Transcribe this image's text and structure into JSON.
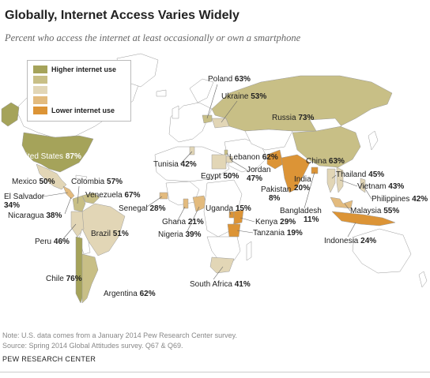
{
  "title": "Globally, Internet Access Varies Widely",
  "subtitle": "Percent who access the internet at least occasionally or own a smartphone",
  "colors": {
    "level1": "#a5a35a",
    "level2": "#c8bf86",
    "level3": "#e2d6b6",
    "level4": "#e3bb7e",
    "level5": "#dc9436",
    "land_no_data": "#ffffff",
    "border": "#999999"
  },
  "legend": {
    "higher": "Higher internet use",
    "lower": "Lower internet use"
  },
  "labels": {
    "poland": {
      "name": "Poland",
      "value": "63%"
    },
    "ukraine": {
      "name": "Ukraine",
      "value": "53%"
    },
    "russia": {
      "name": "Russia",
      "value": "73%"
    },
    "united_states": {
      "name": "United States",
      "value": "87%"
    },
    "mexico": {
      "name": "Mexico",
      "value": "50%"
    },
    "colombia": {
      "name": "Colombia",
      "value": "57%"
    },
    "el_salvador": {
      "name": "El Salvador",
      "value": "34%"
    },
    "venezuela": {
      "name": "Venezuela",
      "value": "67%"
    },
    "nicaragua": {
      "name": "Nicaragua",
      "value": "38%"
    },
    "brazil": {
      "name": "Brazil",
      "value": "51%"
    },
    "peru": {
      "name": "Peru",
      "value": "46%"
    },
    "chile": {
      "name": "Chile",
      "value": "76%"
    },
    "argentina": {
      "name": "Argentina",
      "value": "62%"
    },
    "tunisia": {
      "name": "Tunisia",
      "value": "42%"
    },
    "lebanon": {
      "name": "Lebanon",
      "value": "62%"
    },
    "egypt": {
      "name": "Egypt",
      "value": "50%"
    },
    "jordan": {
      "name": "Jordan",
      "value": "47%"
    },
    "senegal": {
      "name": "Senegal",
      "value": "28%"
    },
    "ghana": {
      "name": "Ghana",
      "value": "21%"
    },
    "nigeria": {
      "name": "Nigeria",
      "value": "39%"
    },
    "uganda": {
      "name": "Uganda",
      "value": "15%"
    },
    "kenya": {
      "name": "Kenya",
      "value": "29%"
    },
    "tanzania": {
      "name": "Tanzania",
      "value": "19%"
    },
    "south_africa": {
      "name": "South Africa",
      "value": "41%"
    },
    "pakistan": {
      "name": "Pakistan",
      "value": "8%"
    },
    "india": {
      "name": "India",
      "value": "20%"
    },
    "bangladesh": {
      "name": "Bangladesh",
      "value": "11%"
    },
    "china": {
      "name": "China",
      "value": "63%"
    },
    "thailand": {
      "name": "Thailand",
      "value": "45%"
    },
    "vietnam": {
      "name": "Vietnam",
      "value": "43%"
    },
    "philippines": {
      "name": "Philippines",
      "value": "42%"
    },
    "malaysia": {
      "name": "Malaysia",
      "value": "55%"
    },
    "indonesia": {
      "name": "Indonesia",
      "value": "24%"
    }
  },
  "note1": "Note: U.S. data comes from a January 2014 Pew Research Center survey.",
  "note2": "Source: Spring 2014 Global Attitudes survey. Q67 & Q69.",
  "source": "PEW RESEARCH CENTER"
}
